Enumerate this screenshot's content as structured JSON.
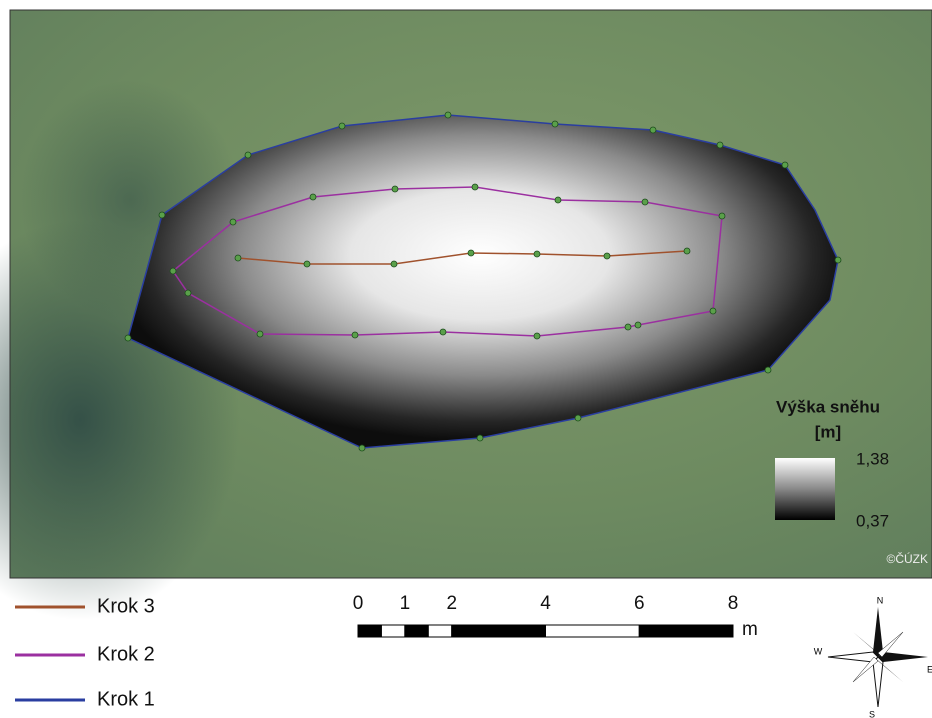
{
  "map": {
    "legend": [
      {
        "label": "Krok 3"
      },
      {
        "label": "Krok 2"
      },
      {
        "label": "Krok 1"
      }
    ],
    "colorbar": {
      "title": [
        "Výška sněhu",
        "[m]"
      ],
      "max": {
        "value": 1.38,
        "label": "1,38"
      },
      "min": {
        "value": 0.37,
        "label": "0,37"
      }
    },
    "scale_bar": {
      "ticks": [
        0,
        1,
        2,
        4,
        6,
        8
      ],
      "unit": "m"
    },
    "compass": {
      "n": "N",
      "w": "W",
      "e": "E",
      "s": "S"
    },
    "watermark": "©ČÚZK"
  }
}
